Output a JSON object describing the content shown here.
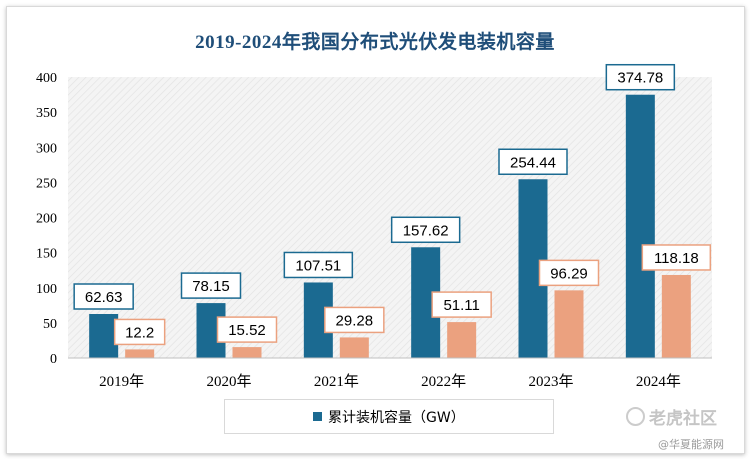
{
  "chart_data": {
    "type": "bar",
    "title": "2019-2024年我国分布式光伏发电装机容量",
    "categories": [
      "2019年",
      "2020年",
      "2021年",
      "2022年",
      "2023年",
      "2024年"
    ],
    "series": [
      {
        "name": "累计装机容量（GW）",
        "values": [
          62.63,
          78.15,
          107.51,
          157.62,
          254.44,
          374.78
        ],
        "color": "#1b6a91"
      },
      {
        "values": [
          12.2,
          15.52,
          29.28,
          51.11,
          96.29,
          118.18
        ],
        "color": "#eba17f"
      }
    ],
    "value_labels": [
      [
        "62.63",
        "78.15",
        "107.51",
        "157.62",
        "254.44",
        "374.78"
      ],
      [
        "12.2",
        "15.52",
        "29.28",
        "51.11",
        "96.29",
        "118.18"
      ]
    ],
    "ylim": [
      0,
      400
    ],
    "yticks": [
      0,
      50,
      100,
      150,
      200,
      250,
      300,
      350,
      400
    ],
    "xlabel": "",
    "ylabel": "",
    "grid": false,
    "legend_position": "bottom",
    "plot_background": "hatched light gray"
  },
  "watermark": "老虎社区",
  "source_mark": "@华夏能源网"
}
